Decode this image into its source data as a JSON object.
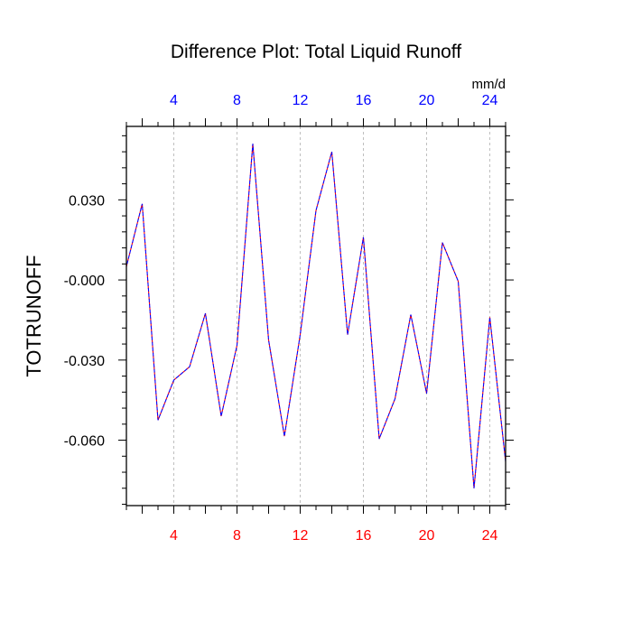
{
  "chart_data": {
    "type": "line",
    "title": "Difference Plot: Total Liquid Runoff",
    "ylabel": "TOTRUNOFF",
    "units": "mm/d",
    "xlim": [
      1,
      25
    ],
    "ylim": [
      -0.0845,
      0.0575
    ],
    "x_ticks": [
      4,
      8,
      12,
      16,
      20,
      24
    ],
    "x_tick_labels": [
      "4",
      "8",
      "12",
      "16",
      "20",
      "24"
    ],
    "y_ticks": [
      0.03,
      0.0,
      -0.03,
      -0.06
    ],
    "y_tick_labels": [
      "0.030",
      "-0.000",
      "-0.030",
      "-0.060"
    ],
    "x_grid": true,
    "colors": {
      "top_axis": "#0000ff",
      "bottom_axis": "#ff0000",
      "series_a": "#ff0000",
      "series_b": "#0000ff",
      "grid": "#b0b0b0"
    },
    "series": [
      {
        "values": [
          0.005,
          0.0285,
          -0.0525,
          -0.0375,
          -0.0325,
          -0.0125,
          -0.051,
          -0.0245,
          0.051,
          -0.0225,
          -0.0585,
          -0.0205,
          0.026,
          0.048,
          -0.0205,
          0.016,
          -0.0595,
          -0.0445,
          -0.013,
          -0.0425,
          0.014,
          -0.0005,
          -0.078,
          -0.014,
          -0.068
        ]
      }
    ]
  }
}
